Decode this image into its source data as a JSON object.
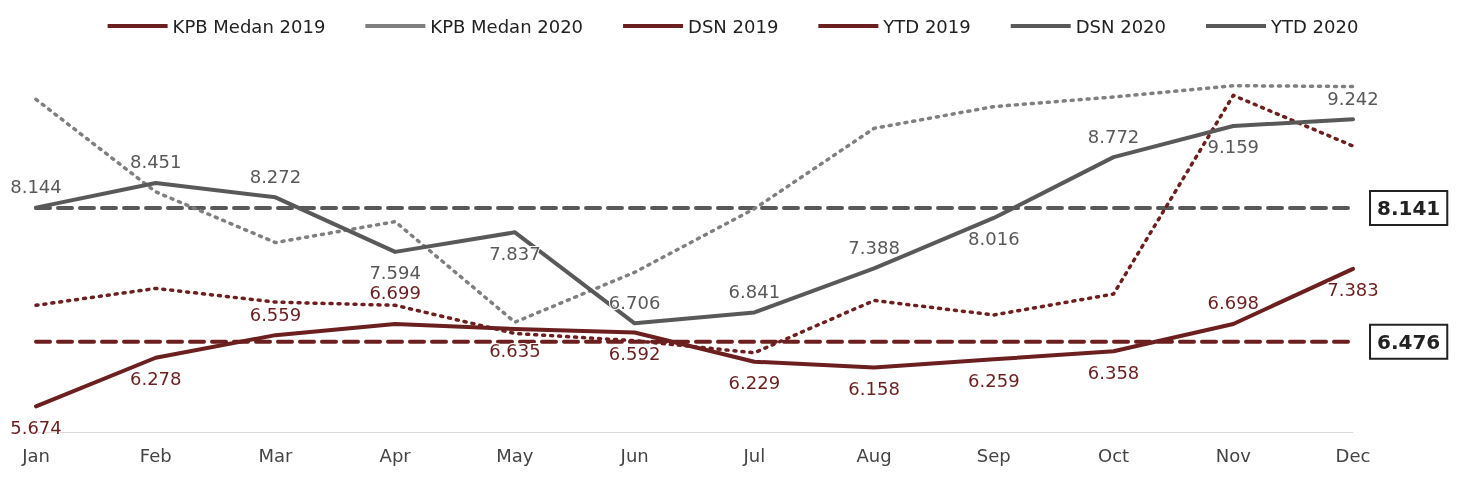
{
  "chart_data": {
    "type": "line",
    "categories": [
      "Jan",
      "Feb",
      "Mar",
      "Apr",
      "May",
      "Jun",
      "Jul",
      "Aug",
      "Sep",
      "Oct",
      "Nov",
      "Dec"
    ],
    "series": [
      {
        "name": "KPB Medan 2019",
        "color": "#6b1f1f",
        "line_style": "dotted",
        "values": [
          6.93,
          7.14,
          6.97,
          6.93,
          6.58,
          6.49,
          6.34,
          6.99,
          6.81,
          7.07,
          9.54,
          8.91
        ]
      },
      {
        "name": "KPB Medan 2020",
        "color": "#7f7f7f",
        "line_style": "dotted",
        "values": [
          9.49,
          8.34,
          7.71,
          7.97,
          6.72,
          7.34,
          8.13,
          9.13,
          9.4,
          9.52,
          9.66,
          9.65
        ]
      },
      {
        "name": "DSN 2019",
        "color": "#6b1f1f",
        "line_style": "solid",
        "data_labels": true,
        "values": [
          5.674,
          6.278,
          6.559,
          6.699,
          6.635,
          6.592,
          6.229,
          6.158,
          6.259,
          6.358,
          6.698,
          7.383
        ]
      },
      {
        "name": "YTD 2019",
        "color": "#6b1f1f",
        "line_style": "dashed",
        "values": [
          6.476,
          6.476,
          6.476,
          6.476,
          6.476,
          6.476,
          6.476,
          6.476,
          6.476,
          6.476,
          6.476,
          6.476
        ],
        "value_labels": [
          null,
          null,
          null,
          null,
          null,
          null,
          null,
          null,
          null,
          null,
          null,
          "6.476"
        ]
      },
      {
        "name": "DSN 2020",
        "color": "#595959",
        "line_style": "solid",
        "data_labels": true,
        "values": [
          8.144,
          8.451,
          8.272,
          7.594,
          7.837,
          6.706,
          6.841,
          7.388,
          8.016,
          8.772,
          9.159,
          9.242
        ]
      },
      {
        "name": "YTD 2020",
        "color": "#595959",
        "line_style": "dashed",
        "values": [
          8.141,
          8.141,
          8.141,
          8.141,
          8.141,
          8.141,
          8.141,
          8.141,
          8.141,
          8.141,
          8.141,
          8.141
        ],
        "value_labels": [
          null,
          null,
          null,
          null,
          null,
          null,
          null,
          null,
          null,
          null,
          null,
          "8.141"
        ]
      }
    ],
    "legend": "top",
    "grid": false,
    "marker": "none"
  }
}
